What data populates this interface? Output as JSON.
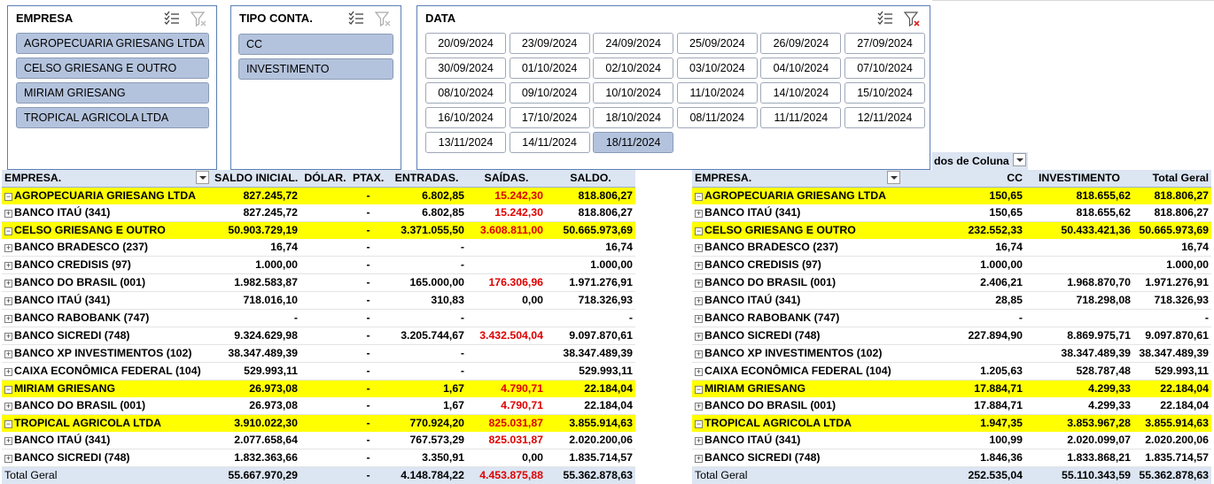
{
  "slicers": {
    "empresa": {
      "title": "EMPRESA",
      "items": [
        {
          "label": "AGROPECUARIA GRIESANG LTDA",
          "selected": true
        },
        {
          "label": "CELSO GRIESANG E OUTRO",
          "selected": true
        },
        {
          "label": "MIRIAM GRIESANG",
          "selected": true
        },
        {
          "label": "TROPICAL AGRICOLA LTDA",
          "selected": true
        }
      ]
    },
    "tipo": {
      "title": "TIPO CONTA.",
      "items": [
        {
          "label": "CC",
          "selected": true
        },
        {
          "label": "INVESTIMENTO",
          "selected": true
        }
      ]
    },
    "data": {
      "title": "DATA",
      "items": [
        {
          "label": "20/09/2024",
          "selected": false
        },
        {
          "label": "23/09/2024",
          "selected": false
        },
        {
          "label": "24/09/2024",
          "selected": false
        },
        {
          "label": "25/09/2024",
          "selected": false
        },
        {
          "label": "26/09/2024",
          "selected": false
        },
        {
          "label": "27/09/2024",
          "selected": false
        },
        {
          "label": "30/09/2024",
          "selected": false
        },
        {
          "label": "01/10/2024",
          "selected": false
        },
        {
          "label": "02/10/2024",
          "selected": false
        },
        {
          "label": "03/10/2024",
          "selected": false
        },
        {
          "label": "04/10/2024",
          "selected": false
        },
        {
          "label": "07/10/2024",
          "selected": false
        },
        {
          "label": "08/10/2024",
          "selected": false
        },
        {
          "label": "09/10/2024",
          "selected": false
        },
        {
          "label": "10/10/2024",
          "selected": false
        },
        {
          "label": "11/10/2024",
          "selected": false
        },
        {
          "label": "14/10/2024",
          "selected": false
        },
        {
          "label": "15/10/2024",
          "selected": false
        },
        {
          "label": "16/10/2024",
          "selected": false
        },
        {
          "label": "17/10/2024",
          "selected": false
        },
        {
          "label": "18/10/2024",
          "selected": false
        },
        {
          "label": "08/11/2024",
          "selected": false
        },
        {
          "label": "11/11/2024",
          "selected": false
        },
        {
          "label": "12/11/2024",
          "selected": false
        },
        {
          "label": "13/11/2024",
          "selected": false
        },
        {
          "label": "14/11/2024",
          "selected": false
        },
        {
          "label": "18/11/2024",
          "selected": true
        }
      ]
    }
  },
  "left_pivot": {
    "headers": [
      "EMPRESA.",
      "SALDO INICIAL.",
      "DÓLAR.",
      "PTAX.",
      "ENTRADAS.",
      "SAÍDAS.",
      "SALDO."
    ],
    "rows": [
      {
        "type": "group",
        "cells": [
          "AGROPECUARIA GRIESANG LTDA",
          "827.245,72",
          "",
          "-",
          "6.802,85",
          "15.242,30",
          "818.806,27"
        ]
      },
      {
        "type": "row",
        "cells": [
          "BANCO ITAÚ (341)",
          "827.245,72",
          "",
          "-",
          "6.802,85",
          "15.242,30",
          "818.806,27"
        ]
      },
      {
        "type": "group",
        "cells": [
          "CELSO GRIESANG E OUTRO",
          "50.903.729,19",
          "",
          "-",
          "3.371.055,50",
          "3.608.811,00",
          "50.665.973,69"
        ]
      },
      {
        "type": "row",
        "cells": [
          "BANCO BRADESCO (237)",
          "16,74",
          "",
          "-",
          "-",
          "",
          "16,74"
        ]
      },
      {
        "type": "row",
        "cells": [
          "BANCO CREDISIS (97)",
          "1.000,00",
          "",
          "-",
          "-",
          "",
          "1.000,00"
        ]
      },
      {
        "type": "row",
        "cells": [
          "BANCO DO BRASIL (001)",
          "1.982.583,87",
          "",
          "-",
          "165.000,00",
          "176.306,96",
          "1.971.276,91"
        ]
      },
      {
        "type": "row",
        "cells": [
          "BANCO ITAÚ (341)",
          "718.016,10",
          "",
          "-",
          "310,83",
          "0,00",
          "718.326,93"
        ]
      },
      {
        "type": "row",
        "cells": [
          "BANCO RABOBANK (747)",
          "-",
          "",
          "-",
          "-",
          "",
          "-"
        ]
      },
      {
        "type": "row",
        "cells": [
          "BANCO SICREDI (748)",
          "9.324.629,98",
          "",
          "-",
          "3.205.744,67",
          "3.432.504,04",
          "9.097.870,61"
        ]
      },
      {
        "type": "row",
        "cells": [
          "BANCO XP INVESTIMENTOS (102)",
          "38.347.489,39",
          "",
          "-",
          "-",
          "",
          "38.347.489,39"
        ]
      },
      {
        "type": "row",
        "cells": [
          "CAIXA ECONÔMICA FEDERAL (104)",
          "529.993,11",
          "",
          "-",
          "-",
          "",
          "529.993,11"
        ]
      },
      {
        "type": "group",
        "cells": [
          "MIRIAM GRIESANG",
          "26.973,08",
          "",
          "-",
          "1,67",
          "4.790,71",
          "22.184,04"
        ]
      },
      {
        "type": "row",
        "cells": [
          "BANCO DO BRASIL (001)",
          "26.973,08",
          "",
          "-",
          "1,67",
          "4.790,71",
          "22.184,04"
        ]
      },
      {
        "type": "group",
        "cells": [
          "TROPICAL AGRICOLA LTDA",
          "3.910.022,30",
          "",
          "-",
          "770.924,20",
          "825.031,87",
          "3.855.914,63"
        ]
      },
      {
        "type": "row",
        "cells": [
          "BANCO ITAÚ (341)",
          "2.077.658,64",
          "",
          "-",
          "767.573,29",
          "825.031,87",
          "2.020.200,06"
        ]
      },
      {
        "type": "row",
        "cells": [
          "BANCO SICREDI (748)",
          "1.832.363,66",
          "",
          "-",
          "3.350,91",
          "0,00",
          "1.835.714,57"
        ]
      },
      {
        "type": "total",
        "cells": [
          "Total Geral",
          "55.667.970,29",
          "",
          "-",
          "4.148.784,22",
          "4.453.875,88",
          "55.362.878,63"
        ]
      }
    ]
  },
  "right_pivot": {
    "col_label": "dos de Coluna",
    "headers": [
      "EMPRESA.",
      "CC",
      "INVESTIMENTO",
      "Total Geral"
    ],
    "rows": [
      {
        "type": "group",
        "cells": [
          "AGROPECUARIA GRIESANG LTDA",
          "150,65",
          "818.655,62",
          "818.806,27"
        ]
      },
      {
        "type": "row",
        "cells": [
          "BANCO ITAÚ (341)",
          "150,65",
          "818.655,62",
          "818.806,27"
        ]
      },
      {
        "type": "group",
        "cells": [
          "CELSO GRIESANG E OUTRO",
          "232.552,33",
          "50.433.421,36",
          "50.665.973,69"
        ]
      },
      {
        "type": "row",
        "cells": [
          "BANCO BRADESCO (237)",
          "16,74",
          "",
          "16,74"
        ]
      },
      {
        "type": "row",
        "cells": [
          "BANCO CREDISIS (97)",
          "1.000,00",
          "",
          "1.000,00"
        ]
      },
      {
        "type": "row",
        "cells": [
          "BANCO DO BRASIL (001)",
          "2.406,21",
          "1.968.870,70",
          "1.971.276,91"
        ]
      },
      {
        "type": "row",
        "cells": [
          "BANCO ITAÚ (341)",
          "28,85",
          "718.298,08",
          "718.326,93"
        ]
      },
      {
        "type": "row",
        "cells": [
          "BANCO RABOBANK (747)",
          "-",
          "",
          "-"
        ]
      },
      {
        "type": "row",
        "cells": [
          "BANCO SICREDI (748)",
          "227.894,90",
          "8.869.975,71",
          "9.097.870,61"
        ]
      },
      {
        "type": "row",
        "cells": [
          "BANCO XP INVESTIMENTOS (102)",
          "",
          "38.347.489,39",
          "38.347.489,39"
        ]
      },
      {
        "type": "row",
        "cells": [
          "CAIXA ECONÔMICA FEDERAL (104)",
          "1.205,63",
          "528.787,48",
          "529.993,11"
        ]
      },
      {
        "type": "group",
        "cells": [
          "MIRIAM GRIESANG",
          "17.884,71",
          "4.299,33",
          "22.184,04"
        ]
      },
      {
        "type": "row",
        "cells": [
          "BANCO DO BRASIL (001)",
          "17.884,71",
          "4.299,33",
          "22.184,04"
        ]
      },
      {
        "type": "group",
        "cells": [
          "TROPICAL AGRICOLA LTDA",
          "1.947,35",
          "3.853.967,28",
          "3.855.914,63"
        ]
      },
      {
        "type": "row",
        "cells": [
          "BANCO ITAÚ (341)",
          "100,99",
          "2.020.099,07",
          "2.020.200,06"
        ]
      },
      {
        "type": "row",
        "cells": [
          "BANCO SICREDI (748)",
          "1.846,36",
          "1.833.868,21",
          "1.835.714,57"
        ]
      },
      {
        "type": "total",
        "cells": [
          "Total Geral",
          "252.535,04",
          "55.110.343,59",
          "55.362.878,63"
        ]
      }
    ]
  },
  "colors": {
    "highlight": "#ffff00",
    "header": "#dce5f2",
    "negative": "#e00000",
    "slicer_selected": "#b4c3dd",
    "slicer_border": "#5b7fb5"
  },
  "icons": [
    "multi-select-icon",
    "clear-filter-icon",
    "clear-filter-active-icon",
    "expand-icon",
    "collapse-icon",
    "filter-dropdown-icon"
  ]
}
